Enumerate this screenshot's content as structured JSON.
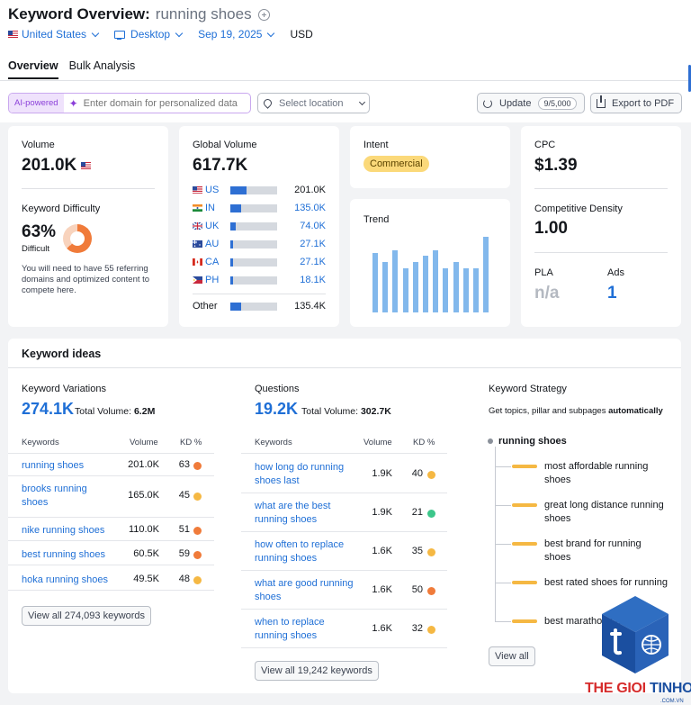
{
  "header": {
    "title": "Keyword Overview:",
    "keyword": "running shoes",
    "filters": {
      "country": "United States",
      "device": "Desktop",
      "date": "Sep 19, 2025",
      "currency": "USD"
    },
    "tabs": [
      "Overview",
      "Bulk Analysis"
    ]
  },
  "toolbar": {
    "ai_badge": "AI-powered",
    "domain_placeholder": "Enter domain for personalized data",
    "location_placeholder": "Select location",
    "update_label": "Update",
    "update_quota": "9/5,000",
    "export_label": "Export to PDF"
  },
  "volume": {
    "label": "Volume",
    "value": "201.0K",
    "kd_label": "Keyword Difficulty",
    "kd_value": "63%",
    "kd_percent": 63,
    "kd_text": "Difficult",
    "kd_note": "You will need to have 55 referring domains and optimized content to compete here."
  },
  "global_volume": {
    "label": "Global Volume",
    "value": "617.7K",
    "rows": [
      {
        "code": "US",
        "value": "201.0K",
        "share": 0.35
      },
      {
        "code": "IN",
        "value": "135.0K",
        "share": 0.23
      },
      {
        "code": "UK",
        "value": "74.0K",
        "share": 0.12
      },
      {
        "code": "AU",
        "value": "27.1K",
        "share": 0.04
      },
      {
        "code": "CA",
        "value": "27.1K",
        "share": 0.04
      },
      {
        "code": "PH",
        "value": "18.1K",
        "share": 0.03
      }
    ],
    "other_label": "Other",
    "other_value": "135.4K",
    "other_share": 0.23
  },
  "intent": {
    "label": "Intent",
    "badge": "Commercial",
    "badge_color": "#fbd97a"
  },
  "trend": {
    "label": "Trend",
    "values": [
      0.78,
      0.67,
      0.82,
      0.58,
      0.67,
      0.75,
      0.82,
      0.58,
      0.67,
      0.58,
      0.58,
      1.0
    ]
  },
  "cpc": {
    "label": "CPC",
    "value": "$1.39",
    "cd_label": "Competitive Density",
    "cd_value": "1.00",
    "pla_label": "PLA",
    "pla_value": "n/a",
    "ads_label": "Ads",
    "ads_value": "1"
  },
  "keyword_ideas": {
    "title": "Keyword ideas",
    "variations": {
      "title": "Keyword Variations",
      "count": "274.1K",
      "total_label": "Total Volume:",
      "total_value": "6.2M",
      "headers": [
        "Keywords",
        "Volume",
        "KD %"
      ],
      "rows": [
        {
          "kw": "running shoes",
          "vol": "201.0K",
          "kd": "63",
          "color": "#f07b3a"
        },
        {
          "kw": "brooks running shoes",
          "vol": "165.0K",
          "kd": "45",
          "color": "#f5b843"
        },
        {
          "kw": "nike running shoes",
          "vol": "110.0K",
          "kd": "51",
          "color": "#f07b3a"
        },
        {
          "kw": "best running shoes",
          "vol": "60.5K",
          "kd": "59",
          "color": "#f07b3a"
        },
        {
          "kw": "hoka running shoes",
          "vol": "49.5K",
          "kd": "48",
          "color": "#f5b843"
        }
      ],
      "view_all": "View all 274,093 keywords"
    },
    "questions": {
      "title": "Questions",
      "count": "19.2K",
      "total_label": "Total Volume:",
      "total_value": "302.7K",
      "headers": [
        "Keywords",
        "Volume",
        "KD %"
      ],
      "rows": [
        {
          "kw": "how long do running shoes last",
          "vol": "1.9K",
          "kd": "40",
          "color": "#f5b843"
        },
        {
          "kw": "what are the best running shoes",
          "vol": "1.9K",
          "kd": "21",
          "color": "#3cc68a"
        },
        {
          "kw": "how often to replace running shoes",
          "vol": "1.6K",
          "kd": "35",
          "color": "#f5b843"
        },
        {
          "kw": "what are good running shoes",
          "vol": "1.6K",
          "kd": "50",
          "color": "#f07b3a"
        },
        {
          "kw": "when to replace running shoes",
          "vol": "1.6K",
          "kd": "32",
          "color": "#f5b843"
        }
      ],
      "view_all": "View all 19,242 keywords"
    },
    "strategy": {
      "title": "Keyword Strategy",
      "subtitle": "Get topics, pillar and subpages",
      "subtitle_bold": "automatically",
      "root": "running shoes",
      "items": [
        "most affordable running shoes",
        "great long distance running shoes",
        "best brand for running shoes",
        "best rated shoes for running",
        "best marathon sneakers"
      ],
      "view_all": "View all"
    }
  },
  "watermark": {
    "text_a": "THE GIOI ",
    "text_b": "TINHOC",
    "sub": ".COM.VN"
  }
}
